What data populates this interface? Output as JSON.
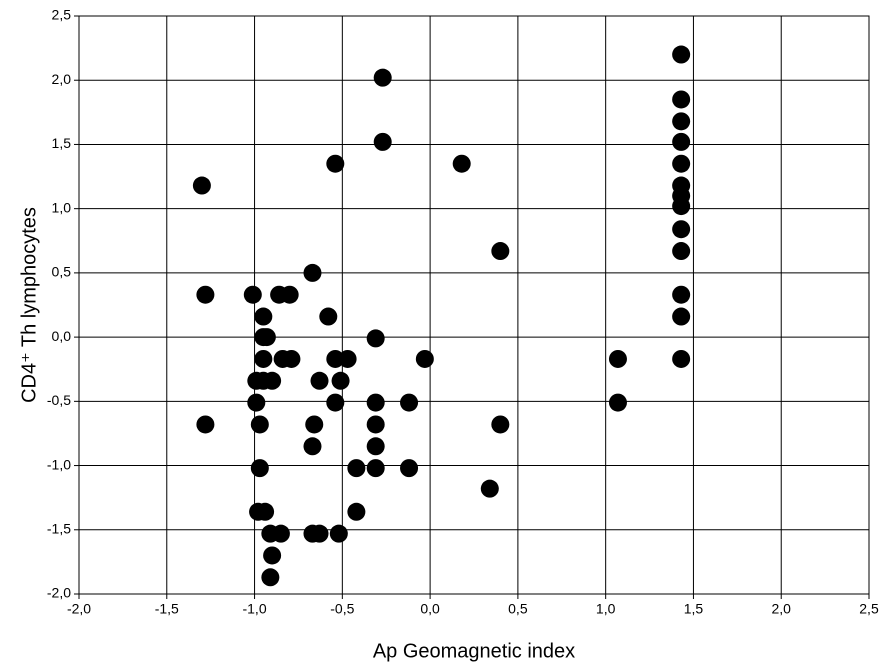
{
  "chart_data": {
    "type": "scatter",
    "xlabel": "Ap Geomagnetic index",
    "ylabel": "CD4⁺ Th lymphocytes",
    "color": "#000000",
    "grid": true,
    "xlim": [
      -2.0,
      2.5
    ],
    "ylim": [
      -2.0,
      2.5
    ],
    "xticks": [
      {
        "value": -2.0,
        "label": "-2,0"
      },
      {
        "value": -1.5,
        "label": "-1,5"
      },
      {
        "value": -1.0,
        "label": "-1,0"
      },
      {
        "value": -0.5,
        "label": "-0,5"
      },
      {
        "value": 0.0,
        "label": "0,0"
      },
      {
        "value": 0.5,
        "label": "0,5"
      },
      {
        "value": 1.0,
        "label": "1,0"
      },
      {
        "value": 1.5,
        "label": "1,5"
      },
      {
        "value": 2.0,
        "label": "2,0"
      },
      {
        "value": 2.5,
        "label": "2,5"
      }
    ],
    "yticks": [
      {
        "value": -2.0,
        "label": "-2,0"
      },
      {
        "value": -1.5,
        "label": "-1,5"
      },
      {
        "value": -1.0,
        "label": "-1,0"
      },
      {
        "value": -0.5,
        "label": "-0,5"
      },
      {
        "value": 0.0,
        "label": "0,0"
      },
      {
        "value": 0.5,
        "label": "0,5"
      },
      {
        "value": 1.0,
        "label": "1,0"
      },
      {
        "value": 1.5,
        "label": "1,5"
      },
      {
        "value": 2.0,
        "label": "2,0"
      },
      {
        "value": 2.5,
        "label": "2,5"
      }
    ],
    "x": [
      1.43,
      1.43,
      1.43,
      1.43,
      1.43,
      1.43,
      1.43,
      1.43,
      1.43,
      1.43,
      1.43,
      1.43,
      1.43,
      -1.3,
      -1.28,
      -1.28,
      -0.27,
      -0.27,
      -0.54,
      0.18,
      0.4,
      -0.67,
      -1.01,
      -0.86,
      -0.8,
      -0.95,
      -0.58,
      -0.95,
      -0.93,
      -0.31,
      -0.95,
      -0.84,
      -0.79,
      -0.54,
      -0.47,
      -0.03,
      1.07,
      -0.99,
      -0.95,
      -0.9,
      -0.63,
      -0.51,
      -0.99,
      -0.54,
      -0.31,
      -0.12,
      1.07,
      -0.97,
      -0.66,
      -0.31,
      0.4,
      -0.67,
      -0.31,
      -0.97,
      -0.42,
      -0.31,
      -0.12,
      0.34,
      -0.98,
      -0.94,
      -0.42,
      -0.91,
      -0.85,
      -0.67,
      -0.63,
      -0.52,
      -0.9,
      -0.91
    ],
    "values": [
      2.2,
      1.85,
      1.68,
      1.52,
      1.35,
      1.18,
      1.1,
      1.02,
      0.84,
      0.67,
      0.33,
      0.16,
      -0.17,
      1.18,
      0.33,
      -0.68,
      2.02,
      1.52,
      1.35,
      1.35,
      0.67,
      0.5,
      0.33,
      0.33,
      0.33,
      0.16,
      0.16,
      0.0,
      0.0,
      -0.01,
      -0.17,
      -0.17,
      -0.17,
      -0.17,
      -0.17,
      -0.17,
      -0.17,
      -0.34,
      -0.34,
      -0.34,
      -0.34,
      -0.34,
      -0.51,
      -0.51,
      -0.51,
      -0.51,
      -0.51,
      -0.68,
      -0.68,
      -0.68,
      -0.68,
      -0.85,
      -0.85,
      -1.02,
      -1.02,
      -1.02,
      -1.02,
      -1.18,
      -1.36,
      -1.36,
      -1.36,
      -1.53,
      -1.53,
      -1.53,
      -1.53,
      -1.53,
      -1.7,
      -1.87
    ]
  }
}
